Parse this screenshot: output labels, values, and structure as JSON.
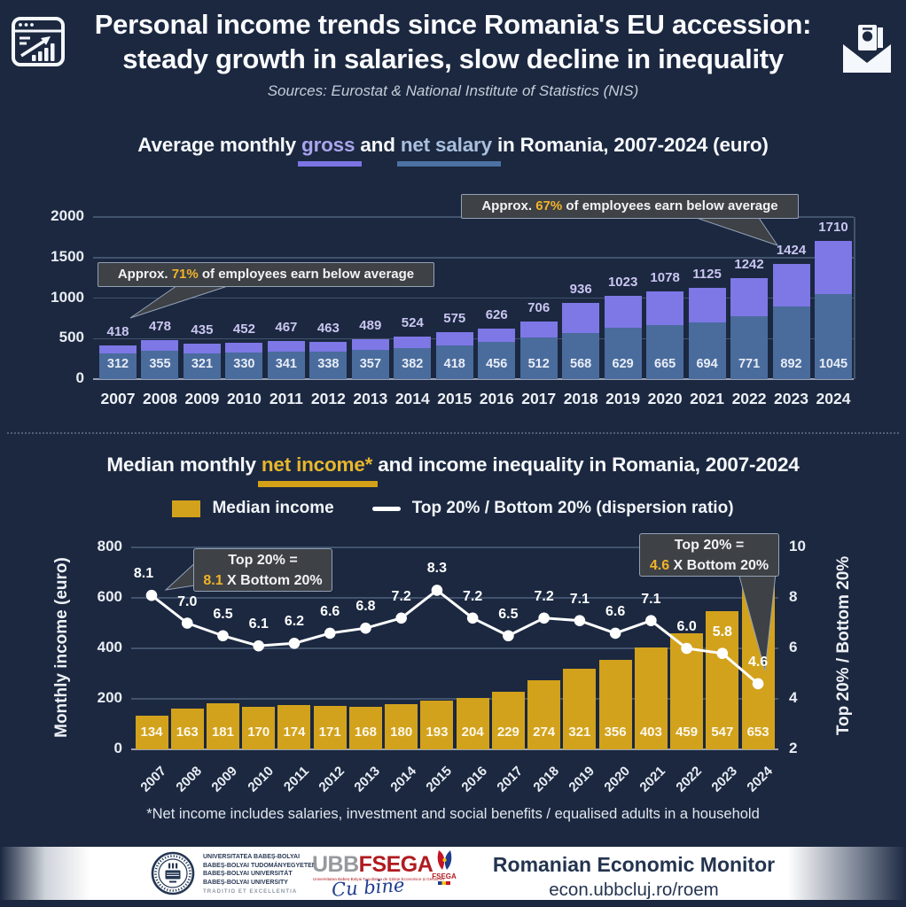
{
  "header": {
    "title_line1": "Personal income trends since Romania's EU accession:",
    "title_line2": "steady growth in salaries, slow decline in inequality",
    "subtitle": "Sources: Eurostat & National Institute of Statistics (NIS)"
  },
  "icons": {
    "top_left": "bar-chart-window-icon",
    "top_right": "newsletter-envelope-icon"
  },
  "colors": {
    "background": "#1b2840",
    "gross_bar": "#7e77e6",
    "net_bar": "#4a6c9d",
    "median_bar": "#d2a21c",
    "ratio_line": "#ffffff",
    "highlight_gold": "#f0b429",
    "callout_background": "#3e4145"
  },
  "salary_chart": {
    "title": {
      "pre": "Average monthly ",
      "gross": "gross",
      "mid": " and ",
      "net": "net salary",
      "post": " in Romania, 2007-2024 (euro)"
    },
    "callout_2007": {
      "pre": "Approx. ",
      "value": "71%",
      "post": " of employees earn below average"
    },
    "callout_2023": {
      "pre": "Approx. ",
      "value": "67%",
      "post": " of employees earn below average"
    }
  },
  "income_chart": {
    "title": {
      "pre": "Median monthly ",
      "highlight": "net income*",
      "post": " and income inequality in Romania, 2007-2024"
    },
    "legend": {
      "bar": "Median income",
      "line": "Top 20% / Bottom 20% (dispersion ratio)"
    },
    "left_axis_label": "Monthly income (euro)",
    "right_axis_label": "Top 20% / Bottom 20%",
    "callout_2007": {
      "line1": "Top 20% =",
      "value": "8.1",
      "line2_rest": " X Bottom 20%"
    },
    "callout_2024": {
      "line1": "Top 20% =",
      "value": "4.6",
      "line2_rest": " X Bottom 20%"
    }
  },
  "footnote": "*Net income includes salaries, investment and social benefits / equalised adults in a household",
  "footer": {
    "university_lines": [
      "UNIVERSITATEA BABEȘ-BOLYAI",
      "BABEȘ-BOLYAI TUDOMÁNYEGYETEM",
      "BABEȘ-BOLYAI UNIVERSITÄT",
      "BABEȘ-BOLYAI UNIVERSITY"
    ],
    "university_motto": "TRADITIO ET EXCELLENTIA",
    "ubb": "UBB",
    "fsega": "FSEGA",
    "fsega_subtext": "Universitatea Babeș-Bolyai Facultatea de Științe Economice și Gestiunea Afacerilor",
    "signature": "Cu bine",
    "emblem_label": "FSEGA",
    "brand_title": "Romanian Economic Monitor",
    "brand_url": "econ.ubbcluj.ro/roem"
  },
  "chart_data": [
    {
      "type": "bar",
      "id": "salary",
      "title": "Average monthly gross and net salary in Romania, 2007-2024 (euro)",
      "categories": [
        "2007",
        "2008",
        "2009",
        "2010",
        "2011",
        "2012",
        "2013",
        "2014",
        "2015",
        "2016",
        "2017",
        "2018",
        "2019",
        "2020",
        "2021",
        "2022",
        "2023",
        "2024"
      ],
      "series": [
        {
          "name": "Gross salary",
          "color": "#7e77e6",
          "values": [
            418,
            478,
            435,
            452,
            467,
            463,
            489,
            524,
            575,
            626,
            706,
            936,
            1023,
            1078,
            1125,
            1242,
            1424,
            1710
          ]
        },
        {
          "name": "Net salary",
          "color": "#4a6c9d",
          "values": [
            312,
            355,
            321,
            330,
            341,
            338,
            357,
            382,
            418,
            456,
            512,
            568,
            629,
            665,
            694,
            771,
            892,
            1045
          ]
        }
      ],
      "bar_mode": "overlay",
      "ylabel": "",
      "ylim": [
        0,
        2000
      ],
      "y_ticks": [
        0,
        500,
        1000,
        1500,
        2000
      ],
      "grid": true,
      "legend_position": "title-inline",
      "annotations": [
        {
          "text": "Approx. 71% of employees earn below average",
          "target": "2007"
        },
        {
          "text": "Approx. 67% of employees earn below average",
          "target": "2023"
        }
      ]
    },
    {
      "type": "bar+line",
      "id": "income-inequality",
      "title": "Median monthly net income* and income inequality in Romania, 2007-2024",
      "categories": [
        "2007",
        "2008",
        "2009",
        "2010",
        "2011",
        "2012",
        "2013",
        "2014",
        "2015",
        "2016",
        "2017",
        "2018",
        "2019",
        "2020",
        "2021",
        "2022",
        "2023",
        "2024"
      ],
      "bar_series": {
        "name": "Median income",
        "axis": "left",
        "color": "#d2a21c",
        "values": [
          134,
          163,
          181,
          170,
          174,
          171,
          168,
          180,
          193,
          204,
          229,
          274,
          321,
          356,
          403,
          459,
          547,
          653
        ]
      },
      "line_series": {
        "name": "Top 20% / Bottom 20% (dispersion ratio)",
        "axis": "right",
        "color": "#ffffff",
        "values": [
          8.1,
          7.0,
          6.5,
          6.1,
          6.2,
          6.6,
          6.8,
          7.2,
          8.3,
          7.2,
          6.5,
          7.2,
          7.1,
          6.6,
          7.1,
          6.0,
          5.8,
          4.6
        ]
      },
      "left_axis": {
        "label": "Monthly income (euro)",
        "range": [
          0,
          800
        ],
        "ticks": [
          0,
          200,
          400,
          600,
          800
        ]
      },
      "right_axis": {
        "label": "Top 20% / Bottom 20%",
        "range": [
          2,
          10
        ],
        "ticks": [
          2,
          4,
          6,
          8,
          10
        ]
      },
      "grid": true,
      "legend_position": "top-center",
      "annotations": [
        {
          "text": "Top 20% = 8.1 X Bottom 20%",
          "target": "2007"
        },
        {
          "text": "Top 20% = 4.6 X Bottom 20%",
          "target": "2024"
        }
      ]
    }
  ]
}
